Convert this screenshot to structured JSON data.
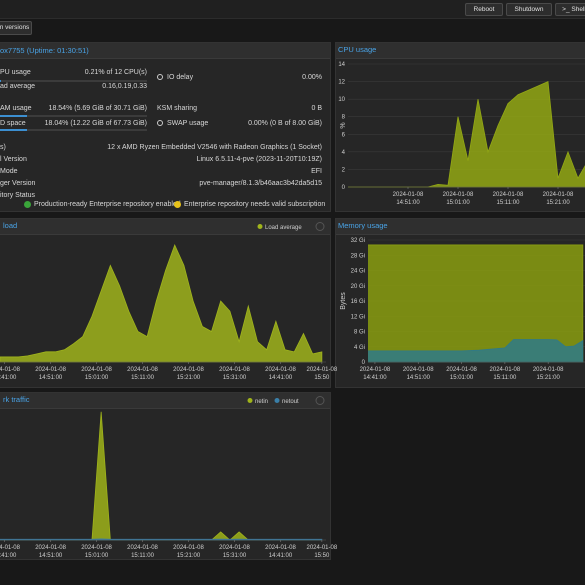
{
  "toolbar": {
    "buttons": [
      "Reboot",
      "Shutdown",
      ">_ Shell"
    ]
  },
  "tabs": [
    "n versions"
  ],
  "summary": {
    "title": "ox7755 (Uptime: 01:30:51)",
    "left": [
      {
        "label": "PU usage",
        "value": "0.21% of 12 CPU(s)",
        "percent": 0.21
      },
      {
        "label": "ad average",
        "value": "0.16,0.19,0.33"
      },
      {
        "label": "AM usage",
        "value": "18.54% (5.69 GiB of 30.71 GiB)",
        "percent": 18.54
      },
      {
        "label": "D space",
        "value": "18.04% (12.22 GiB of 67.73 GiB)",
        "percent": 18.04
      }
    ],
    "right": [
      {
        "label": "IO delay",
        "value": "0.00%"
      },
      {
        "label": "KSM sharing",
        "value": "0 B"
      },
      {
        "label": "SWAP usage",
        "value": "0.00% (0 B of 8.00 GiB)"
      }
    ],
    "info": [
      {
        "label": "s)",
        "value": "12 x AMD Ryzen Embedded V2546 with Radeon Graphics (1 Socket)"
      },
      {
        "label": "l Version",
        "value": "Linux 6.5.11-4-pve (2023-11-20T10:19Z)"
      },
      {
        "label": "Mode",
        "value": "EFI"
      },
      {
        "label": "ger Version",
        "value": "pve-manager/8.1.3/b46aac3b42da5d15"
      }
    ],
    "repository": {
      "label": "itory Status",
      "items": [
        "Production-ready Enterprise repository enabled",
        "Enterprise repository needs valid subscription"
      ]
    }
  },
  "charts": [
    {
      "type": "area",
      "title": "CPU usage",
      "ylabel": "%",
      "grid": true,
      "xlim": [
        -2,
        45.4
      ],
      "ylim": [
        0,
        14
      ],
      "yticks": [
        0,
        2,
        4,
        6,
        8,
        10,
        12,
        14
      ],
      "xticks": [
        {
          "value": 10,
          "date": "2024-01-08",
          "time": "14:51:00"
        },
        {
          "value": 20,
          "date": "2024-01-08",
          "time": "15:01:00"
        },
        {
          "value": 30,
          "date": "2024-01-08",
          "time": "15:11:00"
        },
        {
          "value": 40,
          "date": "2024-01-08",
          "time": "15:21:00"
        }
      ],
      "series": [
        {
          "color": "#93a814",
          "x": [
            -2,
            0,
            2,
            4,
            6,
            8,
            10,
            12,
            14,
            16,
            18,
            20,
            22,
            24,
            26,
            28,
            30,
            32,
            34,
            36,
            38,
            40,
            42,
            44,
            46
          ],
          "values": [
            0,
            0,
            0,
            0,
            0,
            0,
            0,
            0,
            0,
            0.3,
            0.2,
            8,
            3,
            10,
            4,
            7,
            9.5,
            10.5,
            11,
            11.5,
            12,
            1,
            4,
            1,
            3
          ]
        }
      ]
    },
    {
      "type": "area",
      "title": "load",
      "grid": false,
      "xlim": [
        -1,
        69.9
      ],
      "ylim": [
        0,
        1.2
      ],
      "xticks": [
        {
          "value": 0,
          "date": "2024-01-08",
          "time": "14:41:00"
        },
        {
          "value": 10,
          "date": "2024-01-08",
          "time": "14:51:00"
        },
        {
          "value": 20,
          "date": "2024-01-08",
          "time": "15:01:00"
        },
        {
          "value": 30,
          "date": "2024-01-08",
          "time": "15:11:00"
        },
        {
          "value": 40,
          "date": "2024-01-08",
          "time": "15:21:00"
        },
        {
          "value": 50,
          "date": "2024-01-08",
          "time": "15:31:00"
        },
        {
          "value": 60,
          "date": "2024-01-08",
          "time": "14:41:00"
        },
        {
          "value": 69,
          "date": "2024-01-08",
          "time": "15:50"
        }
      ],
      "series": [
        {
          "name": "Load average",
          "color": "#a0b41c",
          "x": [
            -1,
            1,
            3,
            5,
            7,
            9,
            11,
            13,
            15,
            17,
            19,
            21,
            23,
            25,
            27,
            29,
            31,
            33,
            35,
            37,
            39,
            41,
            43,
            45,
            47,
            49,
            51,
            53,
            55,
            57,
            59,
            61,
            63,
            65,
            67,
            69
          ],
          "values": [
            0.05,
            0.05,
            0.05,
            0.06,
            0.08,
            0.1,
            0.1,
            0.12,
            0.18,
            0.25,
            0.45,
            0.7,
            0.95,
            0.75,
            0.5,
            0.3,
            0.25,
            0.6,
            0.9,
            1.15,
            0.95,
            0.6,
            0.35,
            0.3,
            0.6,
            0.5,
            0.2,
            0.55,
            0.2,
            0.12,
            0.4,
            0.12,
            0.1,
            0.28,
            0.08,
            0.1
          ]
        }
      ]
    },
    {
      "type": "area",
      "title": "Memory usage",
      "ylabel": "Bytes",
      "grid": true,
      "xlim": [
        -1.6,
        48.5
      ],
      "ylim": [
        0,
        32
      ],
      "yticks": [
        0,
        {
          "value": 4,
          "label": "4 Gi"
        },
        {
          "value": 8,
          "label": "8 Gi"
        },
        {
          "value": 12,
          "label": "12 Gi"
        },
        {
          "value": 16,
          "label": "16 Gi"
        },
        {
          "value": 20,
          "label": "20 Gi"
        },
        {
          "value": 24,
          "label": "24 Gi"
        },
        {
          "value": 28,
          "label": "28 Gi"
        },
        {
          "value": 32,
          "label": "32 Gi"
        }
      ],
      "xticks": [
        {
          "value": 0,
          "date": "2024-01-08",
          "time": "14:41:00"
        },
        {
          "value": 10,
          "date": "2024-01-08",
          "time": "14:51:00"
        },
        {
          "value": 20,
          "date": "2024-01-08",
          "time": "15:01:00"
        },
        {
          "value": 30,
          "date": "2024-01-08",
          "time": "15:11:00"
        },
        {
          "value": 40,
          "date": "2024-01-08",
          "time": "15:21:00"
        }
      ],
      "series": [
        {
          "color": "#8a9e10",
          "x": [
            -2,
            0,
            2,
            4,
            6,
            8,
            10,
            12,
            14,
            16,
            18,
            20,
            22,
            24,
            26,
            28,
            30,
            32,
            34,
            36,
            38,
            40,
            42,
            44,
            46,
            48
          ],
          "values": [
            30.7,
            30.7,
            30.7,
            30.7,
            30.7,
            30.7,
            30.7,
            30.7,
            30.7,
            30.7,
            30.7,
            30.7,
            30.7,
            30.7,
            30.7,
            30.7,
            30.7,
            30.7,
            30.7,
            30.7,
            30.7,
            30.7,
            30.7,
            30.7,
            30.7,
            30.7
          ]
        },
        {
          "color": "#2f7a88",
          "x": [
            -2,
            0,
            2,
            4,
            6,
            8,
            10,
            12,
            14,
            16,
            18,
            20,
            22,
            24,
            26,
            28,
            30,
            32,
            34,
            36,
            38,
            40,
            42,
            44,
            46,
            48
          ],
          "values": [
            2.9,
            2.9,
            2.9,
            2.9,
            2.9,
            2.9,
            2.9,
            2.9,
            2.9,
            2.9,
            2.9,
            2.9,
            3.0,
            3.1,
            3.3,
            3.5,
            3.7,
            5.9,
            5.9,
            5.9,
            5.9,
            5.9,
            5.8,
            4.0,
            4.2,
            5.6
          ]
        }
      ]
    },
    {
      "type": "area",
      "title": "rk traffic",
      "grid": false,
      "xlim": [
        -1,
        69.9
      ],
      "ylim": [
        0,
        100
      ],
      "xticks": [
        {
          "value": 0,
          "date": "2024-01-08",
          "time": "14:41:00"
        },
        {
          "value": 10,
          "date": "2024-01-08",
          "time": "14:51:00"
        },
        {
          "value": 20,
          "date": "2024-01-08",
          "time": "15:01:00"
        },
        {
          "value": 30,
          "date": "2024-01-08",
          "time": "15:11:00"
        },
        {
          "value": 40,
          "date": "2024-01-08",
          "time": "15:21:00"
        },
        {
          "value": 50,
          "date": "2024-01-08",
          "time": "15:31:00"
        },
        {
          "value": 60,
          "date": "2024-01-08",
          "time": "14:41:00"
        },
        {
          "value": 69,
          "date": "2024-01-08",
          "time": "15:50"
        }
      ],
      "series": [
        {
          "name": "netin",
          "color": "#9fb31a",
          "x": [
            -1,
            1,
            3,
            5,
            7,
            9,
            11,
            13,
            15,
            17,
            19,
            21,
            23,
            25,
            27,
            29,
            31,
            33,
            35,
            37,
            39,
            41,
            43,
            45,
            47,
            49,
            51,
            53,
            55,
            57,
            59,
            61,
            63,
            65,
            67,
            69
          ],
          "values": [
            0,
            0,
            0,
            0,
            0,
            0,
            0,
            0,
            0,
            0,
            0,
            95,
            0,
            0,
            0,
            0,
            0,
            0,
            0,
            0,
            0,
            0,
            0,
            0,
            6,
            0,
            6,
            0,
            0,
            0,
            0,
            0,
            0,
            0,
            0,
            0
          ]
        },
        {
          "name": "netout",
          "color": "#3a7fa8",
          "x": [
            -1,
            1,
            3,
            5,
            7,
            9,
            11,
            13,
            15,
            17,
            19,
            21,
            23,
            25,
            27,
            29,
            31,
            33,
            35,
            37,
            39,
            41,
            43,
            45,
            47,
            49,
            51,
            53,
            55,
            57,
            59,
            61,
            63,
            65,
            67,
            69
          ],
          "values": [
            0.5,
            0.5,
            0.5,
            0.5,
            0.5,
            0.5,
            0.5,
            0.5,
            0.5,
            0.5,
            0.5,
            0.8,
            0.5,
            0.5,
            0.5,
            0.5,
            0.5,
            0.5,
            0.5,
            0.5,
            0.5,
            0.5,
            0.5,
            0.5,
            0.6,
            0.5,
            0.6,
            0.5,
            0.5,
            0.5,
            0.5,
            0.5,
            0.5,
            0.5,
            0.5,
            0.5
          ]
        }
      ]
    }
  ]
}
